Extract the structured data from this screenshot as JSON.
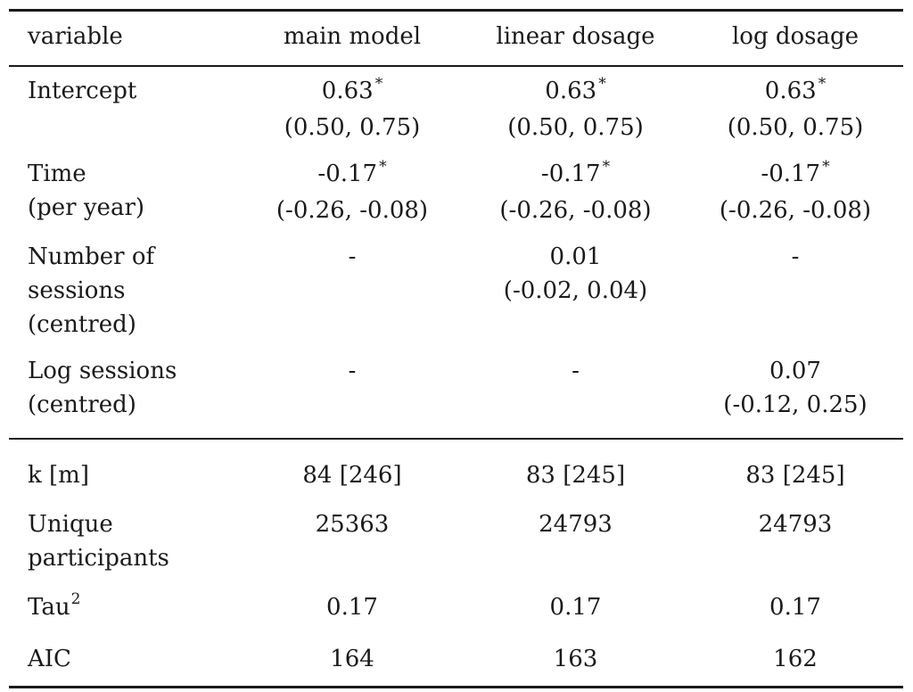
{
  "table": {
    "headers": [
      "variable",
      "main model",
      "linear dosage",
      "log dosage"
    ],
    "coefficients": [
      {
        "label": [
          "Intercept"
        ],
        "cells": [
          {
            "est": "0.63",
            "star": "*",
            "ci": "(0.50, 0.75)"
          },
          {
            "est": "0.63",
            "star": "*",
            "ci": "(0.50, 0.75)"
          },
          {
            "est": "0.63",
            "star": "*",
            "ci": "(0.50, 0.75)"
          }
        ]
      },
      {
        "label": [
          "Time",
          "(per year)"
        ],
        "cells": [
          {
            "est": "-0.17",
            "star": "*",
            "ci": "(-0.26, -0.08)"
          },
          {
            "est": "-0.17",
            "star": "*",
            "ci": "(-0.26, -0.08)"
          },
          {
            "est": "-0.17",
            "star": "*",
            "ci": "(-0.26, -0.08)"
          }
        ]
      },
      {
        "label": [
          "Number of",
          "sessions",
          "(centred)"
        ],
        "cells": [
          {
            "est": "-",
            "star": "",
            "ci": ""
          },
          {
            "est": "0.01",
            "star": "",
            "ci": "(-0.02, 0.04)"
          },
          {
            "est": "-",
            "star": "",
            "ci": ""
          }
        ]
      },
      {
        "label": [
          "Log sessions",
          "(centred)"
        ],
        "cells": [
          {
            "est": "-",
            "star": "",
            "ci": ""
          },
          {
            "est": "-",
            "star": "",
            "ci": ""
          },
          {
            "est": "0.07",
            "star": "",
            "ci": "(-0.12, 0.25)"
          }
        ]
      }
    ],
    "stats": [
      {
        "label": [
          "k [m]"
        ],
        "sup": "",
        "values": [
          "84 [246]",
          "83 [245]",
          "83 [245]"
        ]
      },
      {
        "label": [
          "Unique",
          "participants"
        ],
        "sup": "",
        "values": [
          "25363",
          "24793",
          "24793"
        ]
      },
      {
        "label": [
          "Tau"
        ],
        "sup": "2",
        "values": [
          "0.17",
          "0.17",
          "0.17"
        ]
      },
      {
        "label": [
          "AIC"
        ],
        "sup": "",
        "values": [
          "164",
          "163",
          "162"
        ]
      }
    ]
  }
}
